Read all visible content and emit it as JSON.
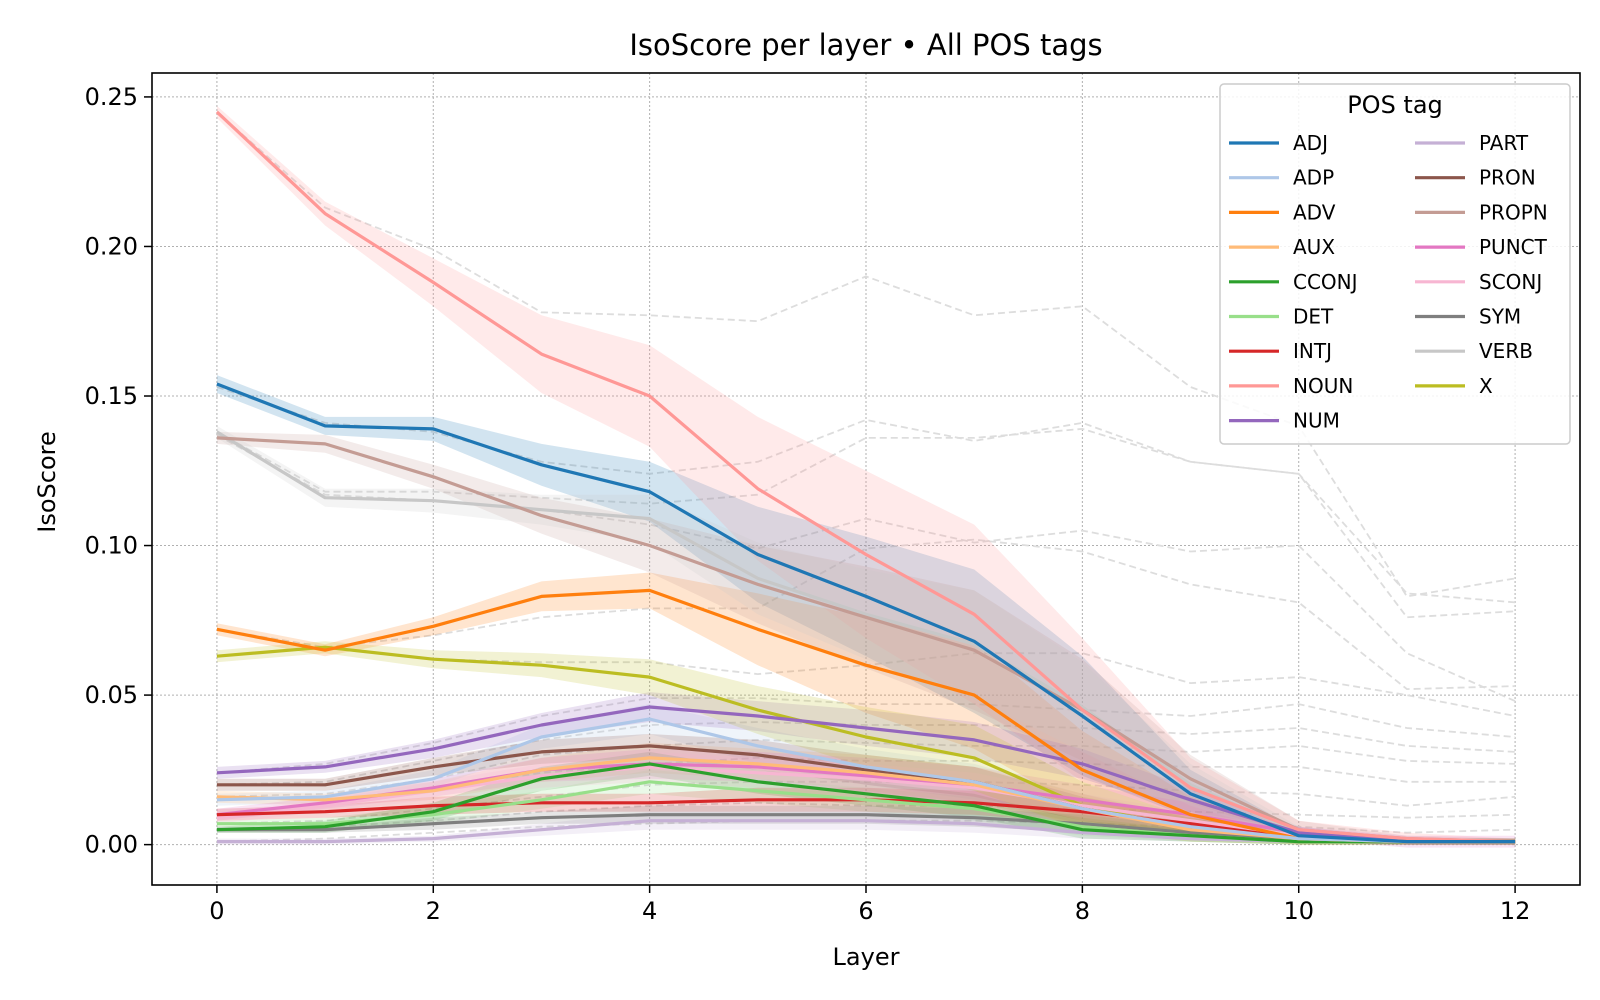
{
  "chart_data": {
    "type": "line",
    "title": "IsoScore per layer • All POS tags",
    "xlabel": "Layer",
    "ylabel": "IsoScore",
    "xlim": [
      -0.6,
      12.6
    ],
    "ylim": [
      -0.0135,
      0.258
    ],
    "xticks": [
      0,
      2,
      4,
      6,
      8,
      10,
      12
    ],
    "yticks": [
      0.0,
      0.05,
      0.1,
      0.15,
      0.2,
      0.25
    ],
    "xtick_labels": [
      "0",
      "2",
      "4",
      "6",
      "8",
      "10",
      "12"
    ],
    "ytick_labels": [
      "0.00",
      "0.05",
      "0.10",
      "0.15",
      "0.20",
      "0.25"
    ],
    "grid": true,
    "legend": {
      "title": "POS tag",
      "placement": "top-right",
      "columns": 2
    },
    "x": [
      0,
      1,
      2,
      3,
      4,
      5,
      6,
      7,
      8,
      9,
      10,
      11,
      12
    ],
    "series": [
      {
        "name": "ADJ",
        "color": "#1f77b4",
        "values": [
          0.154,
          0.14,
          0.139,
          0.127,
          0.118,
          0.097,
          0.083,
          0.068,
          0.043,
          0.017,
          0.003,
          0.001,
          0.001
        ],
        "band": [
          0.003,
          0.003,
          0.004,
          0.007,
          0.01,
          0.016,
          0.02,
          0.024,
          0.02,
          0.008,
          0.002,
          0.001,
          0.001
        ]
      },
      {
        "name": "ADP",
        "color": "#aec7e8",
        "values": [
          0.015,
          0.016,
          0.022,
          0.036,
          0.042,
          0.033,
          0.026,
          0.021,
          0.012,
          0.006,
          0.002,
          0.001,
          0.001
        ],
        "band": [
          0.002,
          0.002,
          0.003,
          0.004,
          0.005,
          0.006,
          0.006,
          0.006,
          0.005,
          0.003,
          0.001,
          0.001,
          0.001
        ]
      },
      {
        "name": "ADV",
        "color": "#ff7f0e",
        "values": [
          0.072,
          0.065,
          0.073,
          0.083,
          0.085,
          0.072,
          0.06,
          0.05,
          0.025,
          0.01,
          0.002,
          0.001,
          0.001
        ],
        "band": [
          0.002,
          0.002,
          0.003,
          0.005,
          0.006,
          0.012,
          0.016,
          0.018,
          0.013,
          0.006,
          0.002,
          0.001,
          0.001
        ]
      },
      {
        "name": "AUX",
        "color": "#ffbb78",
        "values": [
          0.016,
          0.015,
          0.018,
          0.025,
          0.029,
          0.027,
          0.024,
          0.02,
          0.012,
          0.005,
          0.002,
          0.001,
          0.001
        ],
        "band": [
          0.002,
          0.002,
          0.003,
          0.004,
          0.005,
          0.005,
          0.006,
          0.006,
          0.005,
          0.003,
          0.001,
          0.001,
          0.001
        ]
      },
      {
        "name": "CCONJ",
        "color": "#2ca02c",
        "values": [
          0.005,
          0.006,
          0.011,
          0.022,
          0.027,
          0.021,
          0.017,
          0.013,
          0.005,
          0.003,
          0.001,
          0.001,
          0.001
        ],
        "band": [
          0.001,
          0.002,
          0.003,
          0.004,
          0.004,
          0.004,
          0.004,
          0.004,
          0.003,
          0.002,
          0.001,
          0.001,
          0.001
        ]
      },
      {
        "name": "DET",
        "color": "#98df8a",
        "values": [
          0.007,
          0.007,
          0.01,
          0.015,
          0.021,
          0.018,
          0.015,
          0.012,
          0.006,
          0.003,
          0.001,
          0.001,
          0.001
        ],
        "band": [
          0.001,
          0.002,
          0.003,
          0.003,
          0.004,
          0.004,
          0.004,
          0.004,
          0.003,
          0.002,
          0.001,
          0.001,
          0.001
        ]
      },
      {
        "name": "INTJ",
        "color": "#d62728",
        "values": [
          0.01,
          0.011,
          0.013,
          0.014,
          0.014,
          0.015,
          0.015,
          0.014,
          0.011,
          0.007,
          0.002,
          0.001,
          0.001
        ],
        "band": [
          0.002,
          0.002,
          0.003,
          0.003,
          0.003,
          0.004,
          0.004,
          0.004,
          0.004,
          0.003,
          0.001,
          0.001,
          0.001
        ]
      },
      {
        "name": "NOUN",
        "color": "#ff9896",
        "values": [
          0.245,
          0.211,
          0.188,
          0.164,
          0.15,
          0.119,
          0.097,
          0.077,
          0.045,
          0.019,
          0.005,
          0.002,
          0.001
        ],
        "band": [
          0.002,
          0.004,
          0.008,
          0.013,
          0.017,
          0.024,
          0.028,
          0.03,
          0.024,
          0.01,
          0.003,
          0.002,
          0.001
        ]
      },
      {
        "name": "NUM",
        "color": "#9467bd",
        "values": [
          0.024,
          0.026,
          0.032,
          0.04,
          0.046,
          0.043,
          0.039,
          0.035,
          0.027,
          0.015,
          0.004,
          0.001,
          0.001
        ],
        "band": [
          0.002,
          0.002,
          0.003,
          0.004,
          0.005,
          0.005,
          0.006,
          0.006,
          0.005,
          0.004,
          0.002,
          0.001,
          0.001
        ]
      },
      {
        "name": "PART",
        "color": "#c5b0d5",
        "values": [
          0.001,
          0.001,
          0.002,
          0.005,
          0.008,
          0.008,
          0.008,
          0.007,
          0.004,
          0.002,
          0.001,
          0.001,
          0.001
        ],
        "band": [
          0.001,
          0.001,
          0.001,
          0.002,
          0.003,
          0.003,
          0.003,
          0.003,
          0.002,
          0.001,
          0.001,
          0.001,
          0.001
        ]
      },
      {
        "name": "PRON",
        "color": "#8c564b",
        "values": [
          0.02,
          0.02,
          0.026,
          0.031,
          0.033,
          0.03,
          0.025,
          0.021,
          0.012,
          0.006,
          0.002,
          0.001,
          0.001
        ],
        "band": [
          0.002,
          0.002,
          0.003,
          0.004,
          0.004,
          0.005,
          0.005,
          0.005,
          0.004,
          0.003,
          0.001,
          0.001,
          0.001
        ]
      },
      {
        "name": "PROPN",
        "color": "#c49c94",
        "values": [
          0.136,
          0.134,
          0.123,
          0.11,
          0.1,
          0.087,
          0.076,
          0.065,
          0.045,
          0.022,
          0.005,
          0.002,
          0.001
        ],
        "band": [
          0.002,
          0.003,
          0.004,
          0.006,
          0.009,
          0.013,
          0.017,
          0.02,
          0.017,
          0.008,
          0.003,
          0.001,
          0.001
        ]
      },
      {
        "name": "PUNCT",
        "color": "#e377c2",
        "values": [
          0.01,
          0.014,
          0.019,
          0.025,
          0.027,
          0.026,
          0.023,
          0.02,
          0.015,
          0.01,
          0.004,
          0.001,
          0.001
        ],
        "band": [
          0.002,
          0.002,
          0.003,
          0.004,
          0.005,
          0.005,
          0.006,
          0.006,
          0.005,
          0.004,
          0.002,
          0.002,
          0.002
        ]
      },
      {
        "name": "SCONJ",
        "color": "#f7b6d2",
        "values": [
          0.009,
          0.013,
          0.018,
          0.023,
          0.026,
          0.024,
          0.022,
          0.019,
          0.013,
          0.008,
          0.003,
          0.001,
          0.001
        ],
        "band": [
          0.002,
          0.002,
          0.003,
          0.004,
          0.005,
          0.005,
          0.005,
          0.005,
          0.004,
          0.003,
          0.002,
          0.001,
          0.001
        ]
      },
      {
        "name": "SYM",
        "color": "#7f7f7f",
        "values": [
          0.005,
          0.005,
          0.007,
          0.009,
          0.01,
          0.01,
          0.01,
          0.009,
          0.007,
          0.004,
          0.002,
          0.001,
          0.001
        ],
        "band": [
          0.001,
          0.001,
          0.002,
          0.002,
          0.003,
          0.003,
          0.003,
          0.003,
          0.003,
          0.002,
          0.001,
          0.001,
          0.001
        ]
      },
      {
        "name": "VERB",
        "color": "#c7c7c7",
        "values": [
          0.138,
          0.116,
          0.115,
          0.112,
          0.109,
          0.089,
          0.077,
          0.067,
          0.046,
          0.02,
          0.004,
          0.001,
          0.001
        ],
        "band": [
          0.002,
          0.003,
          0.004,
          0.005,
          0.008,
          0.012,
          0.015,
          0.018,
          0.015,
          0.007,
          0.002,
          0.001,
          0.001
        ]
      },
      {
        "name": "X",
        "color": "#bcbd22",
        "values": [
          0.063,
          0.066,
          0.062,
          0.06,
          0.056,
          0.045,
          0.036,
          0.029,
          0.013,
          0.005,
          0.002,
          0.001,
          0.001
        ],
        "band": [
          0.002,
          0.002,
          0.003,
          0.004,
          0.006,
          0.008,
          0.01,
          0.011,
          0.008,
          0.004,
          0.002,
          0.001,
          0.001
        ]
      }
    ],
    "reference_lines": {
      "color": "#dddddd",
      "style": "dashed",
      "lines": [
        [
          0.245,
          0.213,
          0.199,
          0.178,
          0.177,
          0.175,
          0.19,
          0.177,
          0.18,
          0.153,
          0.14,
          0.083,
          0.089
        ],
        [
          0.153,
          0.141,
          0.138,
          0.128,
          0.124,
          0.128,
          0.142,
          0.135,
          0.141,
          0.128,
          0.124,
          0.084,
          0.081
        ],
        [
          0.138,
          0.118,
          0.118,
          0.116,
          0.114,
          0.117,
          0.136,
          0.136,
          0.139,
          0.128,
          0.124,
          0.076,
          0.078
        ],
        [
          0.137,
          0.117,
          0.115,
          0.112,
          0.107,
          0.099,
          0.109,
          0.101,
          0.105,
          0.098,
          0.1,
          0.064,
          0.048
        ],
        [
          0.072,
          0.066,
          0.07,
          0.076,
          0.079,
          0.079,
          0.099,
          0.102,
          0.098,
          0.087,
          0.081,
          0.052,
          0.053
        ],
        [
          0.063,
          0.066,
          0.062,
          0.061,
          0.061,
          0.057,
          0.06,
          0.064,
          0.064,
          0.054,
          0.056,
          0.05,
          0.043
        ],
        [
          0.024,
          0.027,
          0.034,
          0.043,
          0.049,
          0.049,
          0.047,
          0.047,
          0.045,
          0.043,
          0.047,
          0.039,
          0.036
        ],
        [
          0.02,
          0.021,
          0.028,
          0.035,
          0.04,
          0.041,
          0.04,
          0.04,
          0.039,
          0.037,
          0.039,
          0.033,
          0.031
        ],
        [
          0.016,
          0.017,
          0.022,
          0.03,
          0.033,
          0.035,
          0.034,
          0.033,
          0.033,
          0.031,
          0.033,
          0.028,
          0.027
        ],
        [
          0.01,
          0.014,
          0.019,
          0.024,
          0.027,
          0.029,
          0.028,
          0.028,
          0.027,
          0.026,
          0.026,
          0.021,
          0.021
        ],
        [
          0.007,
          0.008,
          0.012,
          0.016,
          0.02,
          0.021,
          0.021,
          0.021,
          0.02,
          0.018,
          0.017,
          0.013,
          0.016
        ],
        [
          0.005,
          0.006,
          0.008,
          0.011,
          0.013,
          0.014,
          0.013,
          0.013,
          0.012,
          0.011,
          0.01,
          0.009,
          0.01
        ],
        [
          0.001,
          0.002,
          0.004,
          0.006,
          0.007,
          0.008,
          0.008,
          0.008,
          0.007,
          0.006,
          0.006,
          0.004,
          0.005
        ]
      ]
    }
  }
}
